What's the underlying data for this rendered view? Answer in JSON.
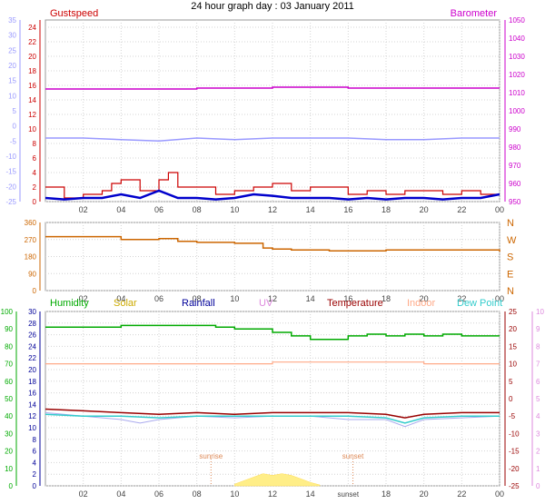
{
  "title": "24 hour graph day : 03 January 2011",
  "x_ticks": [
    "02",
    "04",
    "06",
    "08",
    "10",
    "12",
    "14",
    "16",
    "18",
    "20",
    "22",
    "00"
  ],
  "colors": {
    "gust": "#cc0000",
    "wind": "#0000cc",
    "temp_scale": "#9999ff",
    "barometer": "#cc00cc",
    "direction": "#cc6600",
    "humidity": "#00aa00",
    "solar": "#ccaa00",
    "rainfall": "#000099",
    "uv": "#dd88dd",
    "temperature": "#990000",
    "indoor": "#ffaa88",
    "dewpoint": "#33cccc",
    "grid": "#d4d4d4",
    "axis": "#444444"
  },
  "chart_data": [
    {
      "type": "line",
      "legend": {
        "left": "Gustspeed",
        "right": "Barometer"
      },
      "left_axis_a": {
        "ticks": [
          "0",
          "2",
          "4",
          "6",
          "8",
          "10",
          "12",
          "14",
          "16",
          "18",
          "20",
          "22",
          "24"
        ],
        "ylim": [
          0,
          25
        ]
      },
      "left_axis_b": {
        "ticks": [
          "-25",
          "-20",
          "-15",
          "-10",
          "-5",
          "0",
          "5",
          "10",
          "15",
          "20",
          "25",
          "30",
          "35"
        ]
      },
      "right_axis": {
        "ticks": [
          "950",
          "960",
          "970",
          "980",
          "990",
          "1000",
          "1010",
          "1020",
          "1030",
          "1040",
          "1050"
        ],
        "ylim": [
          950,
          1050
        ]
      },
      "series": [
        {
          "name": "Barometer",
          "axis": "right",
          "x": [
            0,
            4,
            8,
            12,
            16,
            20,
            24
          ],
          "values": [
            1012,
            1012,
            1012.5,
            1013,
            1012.5,
            1012.5,
            1012.5
          ]
        },
        {
          "name": "Gustspeed",
          "axis": "left",
          "x": [
            0,
            1,
            2,
            3,
            3.5,
            4,
            5,
            6,
            6.5,
            7,
            8,
            9,
            10,
            11,
            12,
            13,
            14,
            15,
            16,
            17,
            18,
            19,
            20,
            21,
            22,
            23,
            24
          ],
          "values": [
            2,
            0.5,
            1,
            1.5,
            2.5,
            3,
            1.5,
            3,
            4,
            2,
            2,
            1,
            1.5,
            2,
            2.5,
            1.5,
            2,
            2,
            1,
            1.5,
            1,
            1.5,
            1.5,
            1,
            1.5,
            1,
            1
          ]
        },
        {
          "name": "Windspeed",
          "axis": "left",
          "x": [
            0,
            1,
            2,
            3,
            4,
            5,
            6,
            7,
            8,
            9,
            10,
            11,
            12,
            13,
            14,
            15,
            16,
            17,
            18,
            19,
            20,
            21,
            22,
            23,
            24
          ],
          "values": [
            0.5,
            0.3,
            0.5,
            0.5,
            1,
            0.5,
            1.5,
            0.5,
            0.5,
            0.3,
            0.5,
            1,
            0.8,
            0.5,
            0.5,
            0.5,
            0.3,
            0.5,
            0.3,
            0.5,
            0.5,
            0.3,
            0.5,
            0.5,
            1
          ]
        },
        {
          "name": "Temperature",
          "axis": "left_b",
          "x": [
            0,
            2,
            4,
            6,
            8,
            10,
            12,
            14,
            16,
            18,
            20,
            22,
            24
          ],
          "values": [
            -4,
            -4,
            -4.5,
            -5,
            -4,
            -4.5,
            -4,
            -4,
            -4,
            -4.5,
            -4.5,
            -4,
            -4
          ]
        }
      ]
    },
    {
      "type": "line",
      "left_axis": {
        "ticks": [
          "0",
          "90",
          "180",
          "270",
          "360"
        ],
        "ylim": [
          0,
          360
        ]
      },
      "right_labels": [
        "N",
        "W",
        "S",
        "E",
        "N"
      ],
      "series": [
        {
          "name": "Wind direction",
          "x": [
            0,
            4,
            6,
            7,
            8,
            10,
            11,
            11.5,
            12,
            13,
            15,
            18,
            21,
            22,
            24
          ],
          "values": [
            285,
            270,
            275,
            260,
            255,
            250,
            250,
            225,
            220,
            215,
            210,
            215,
            215,
            215,
            205
          ]
        }
      ]
    },
    {
      "type": "line",
      "legend": [
        "Humidity",
        "Solar",
        "Rainfall",
        "UV",
        "Temperature",
        "Indoor",
        "Dew Point"
      ],
      "annotations": [
        "sunrise",
        "sunset"
      ],
      "annotation_x": [
        8.75,
        16.25
      ],
      "axis_humidity": {
        "ticks": [
          "0",
          "10",
          "20",
          "30",
          "40",
          "50",
          "60",
          "70",
          "80",
          "90",
          "100"
        ],
        "ylim": [
          0,
          100
        ]
      },
      "axis_rain": {
        "ticks": [
          "0",
          "2",
          "4",
          "6",
          "8",
          "10",
          "12",
          "14",
          "16",
          "18",
          "20",
          "22",
          "24",
          "26",
          "28",
          "30"
        ],
        "ylim": [
          0,
          30
        ]
      },
      "axis_temp": {
        "ticks": [
          "-25",
          "-20",
          "-15",
          "-10",
          "-5",
          "0",
          "5",
          "10",
          "15",
          "20",
          "25"
        ],
        "ylim": [
          -25,
          25
        ]
      },
      "axis_uv": {
        "ticks": [
          "0",
          "1",
          "2",
          "3",
          "4",
          "5",
          "6",
          "7",
          "8",
          "9",
          "10"
        ],
        "ylim": [
          0,
          10
        ]
      },
      "series": [
        {
          "name": "Humidity",
          "axis": "humidity",
          "x": [
            0,
            4,
            8,
            9,
            10,
            12,
            13,
            14,
            15,
            16,
            17,
            18,
            19,
            20,
            21,
            22,
            23,
            24
          ],
          "values": [
            91,
            92,
            92,
            91,
            90,
            88,
            86,
            84,
            84,
            86,
            87,
            86,
            87,
            86,
            87,
            86,
            86,
            86
          ]
        },
        {
          "name": "Indoor",
          "axis": "temp",
          "x": [
            0,
            8,
            12,
            16,
            20,
            24
          ],
          "values": [
            10,
            10,
            10.5,
            10.5,
            10,
            10
          ]
        },
        {
          "name": "Temperature",
          "axis": "temp",
          "x": [
            0,
            2,
            4,
            6,
            8,
            10,
            12,
            14,
            16,
            18,
            19,
            20,
            22,
            24
          ],
          "values": [
            -3,
            -3.5,
            -4,
            -4.5,
            -4,
            -4.5,
            -4,
            -4,
            -4,
            -4.5,
            -5.5,
            -4.5,
            -4,
            -4
          ]
        },
        {
          "name": "Dew Point",
          "axis": "temp",
          "x": [
            0,
            2,
            4,
            6,
            8,
            10,
            12,
            14,
            16,
            18,
            19,
            20,
            22,
            24
          ],
          "values": [
            -4.5,
            -5,
            -5,
            -5.5,
            -5,
            -5,
            -5,
            -5,
            -5,
            -5.5,
            -7,
            -5.5,
            -5,
            -5
          ]
        },
        {
          "name": "Temperature (light)",
          "axis": "temp",
          "x": [
            0,
            2,
            4,
            5,
            6,
            8,
            10,
            12,
            14,
            16,
            18,
            19,
            20,
            22,
            24
          ],
          "values": [
            -4,
            -5,
            -6,
            -7,
            -6,
            -5,
            -5.5,
            -5,
            -5,
            -6,
            -6,
            -8,
            -6,
            -5.5,
            -5
          ]
        },
        {
          "name": "Solar",
          "axis": "humidity",
          "x": [
            10,
            11,
            11.5,
            12,
            12.5,
            13,
            13.5,
            14,
            14.5
          ],
          "values": [
            1,
            5,
            7,
            6,
            7,
            6,
            4,
            2,
            0.5
          ]
        }
      ]
    }
  ]
}
